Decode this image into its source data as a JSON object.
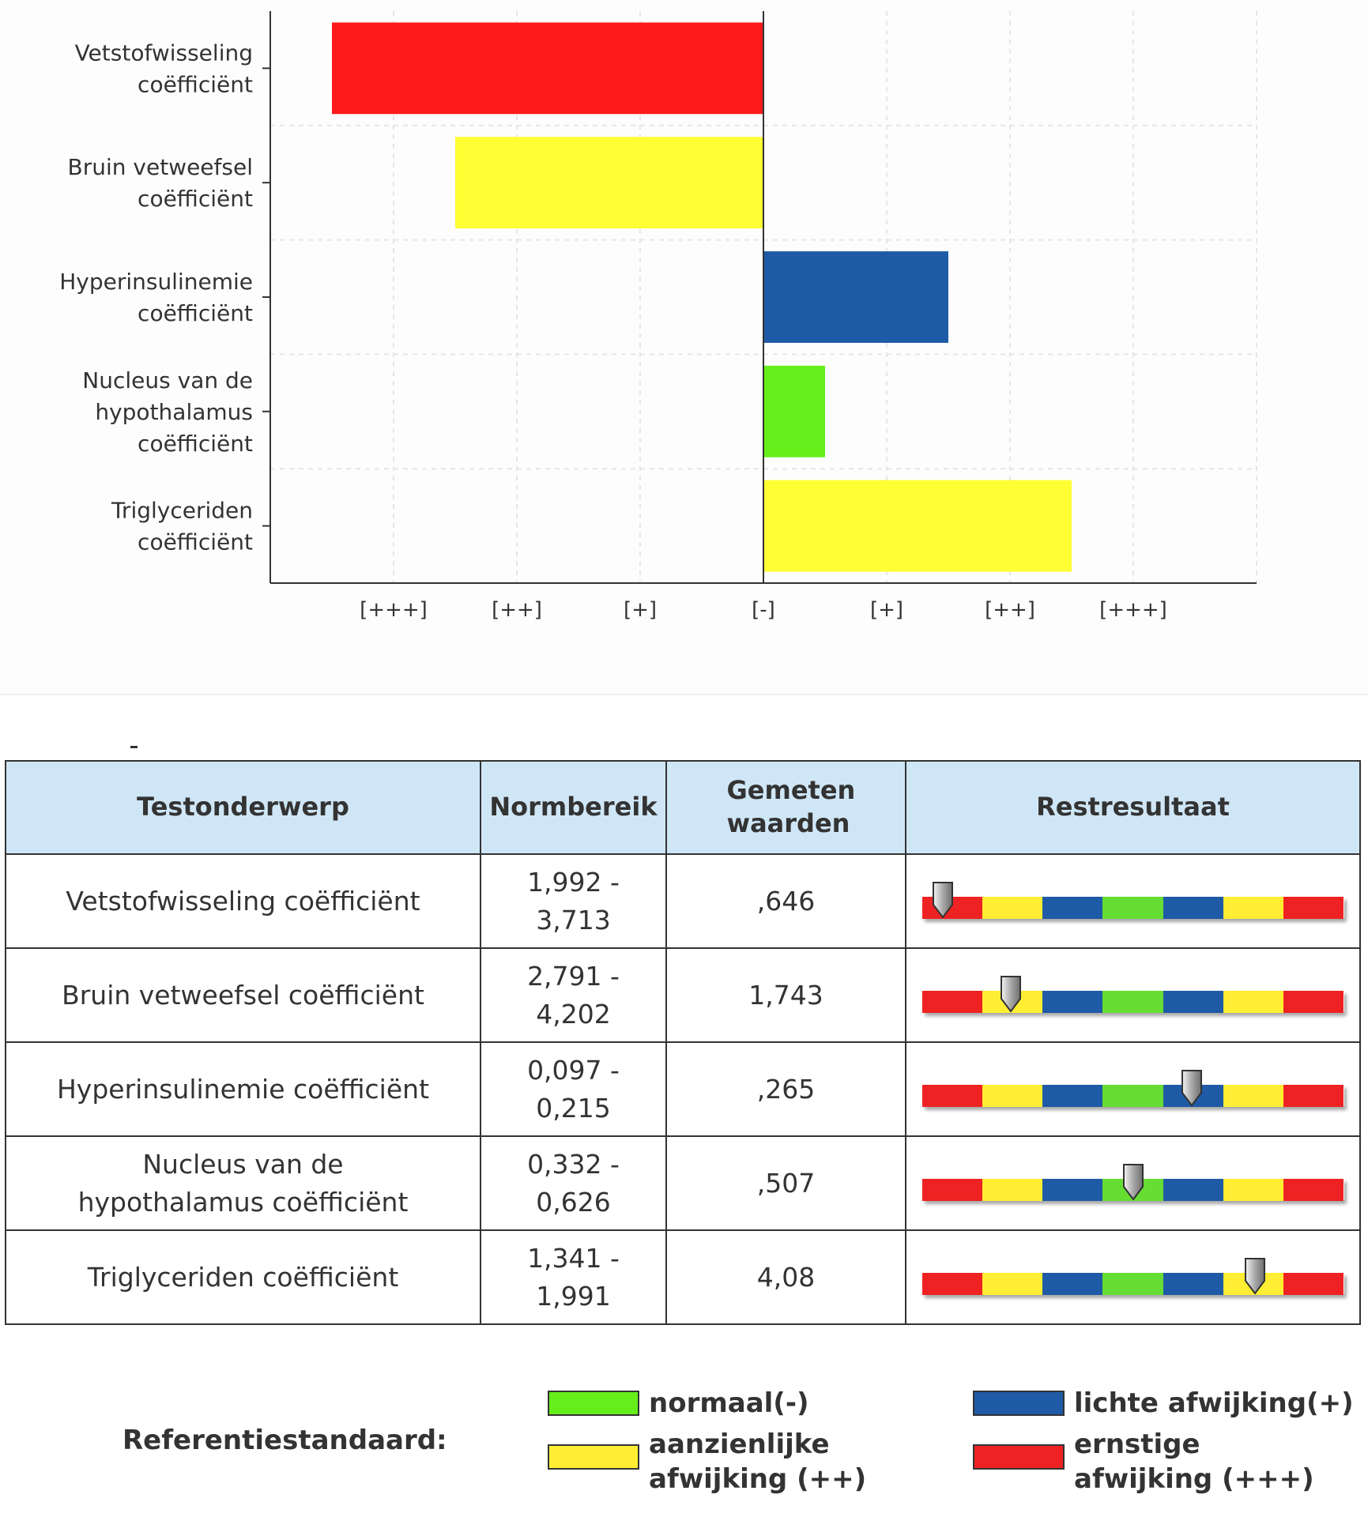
{
  "chart_data": {
    "type": "bar",
    "orientation": "horizontal",
    "categories": [
      [
        "Vetstofwisseling",
        "coëfficiënt"
      ],
      [
        "Bruin vetweefsel",
        "coëfficiënt"
      ],
      [
        "Hyperinsulinemie",
        "coëfficiënt"
      ],
      [
        "Nucleus van de",
        "hypothalamus",
        "coëfficiënt"
      ],
      [
        "Triglyceriden",
        "coëfficiënt"
      ]
    ],
    "values": [
      -3.5,
      -2.5,
      1.5,
      0.5,
      2.5
    ],
    "colors": [
      "#ff1a1a",
      "#ffff33",
      "#1f5aa6",
      "#66ee1a",
      "#ffff33"
    ],
    "x_tick_values": [
      -3,
      -2,
      -1,
      0,
      1,
      2,
      3
    ],
    "x_tick_labels": [
      "[+++]",
      "[++]",
      "[+]",
      "[-]",
      "[+]",
      "[++]",
      "[+++]"
    ],
    "xlim": [
      -4,
      4
    ],
    "grid": true,
    "title": "",
    "xlabel": "",
    "ylabel": ""
  },
  "table": {
    "headers": [
      "Testonderwerp",
      "Normbereik",
      "Gemeten waarden",
      "Restresultaat"
    ],
    "rows": [
      {
        "subject": "Vetstofwisseling coëfficiënt",
        "range": "1,992 - 3,713",
        "measured": ",646",
        "position": 0.05
      },
      {
        "subject": "Bruin vetweefsel coëfficiënt",
        "range": "2,791 - 4,202",
        "measured": "1,743",
        "position": 0.21
      },
      {
        "subject": "Hyperinsulinemie coëfficiënt",
        "range": "0,097 - 0,215",
        "measured": ",265",
        "position": 0.64
      },
      {
        "subject": "Nucleus van de hypothalamus coëfficiënt",
        "range": "0,332 - 0,626",
        "measured": ",507",
        "position": 0.5
      },
      {
        "subject": "Triglyceriden coëfficiënt",
        "range": "1,341 - 1,991",
        "measured": "4,08",
        "position": 0.79
      }
    ],
    "scale_colors": [
      "#ee2222",
      "#ffee33",
      "#1f5aa6",
      "#66dd33",
      "#1f5aa6",
      "#ffee33",
      "#ee2222"
    ]
  },
  "legend": {
    "title": "Referentiestandaard:",
    "items": [
      {
        "label": "normaal(-)",
        "color": "#66ee1a"
      },
      {
        "label": "lichte afwijking(+)",
        "color": "#1f5aa6"
      },
      {
        "label": "aanzienlijke afwijking (++)",
        "color": "#ffee33"
      },
      {
        "label": "ernstige afwijking (+++)",
        "color": "#ee2222"
      }
    ]
  }
}
